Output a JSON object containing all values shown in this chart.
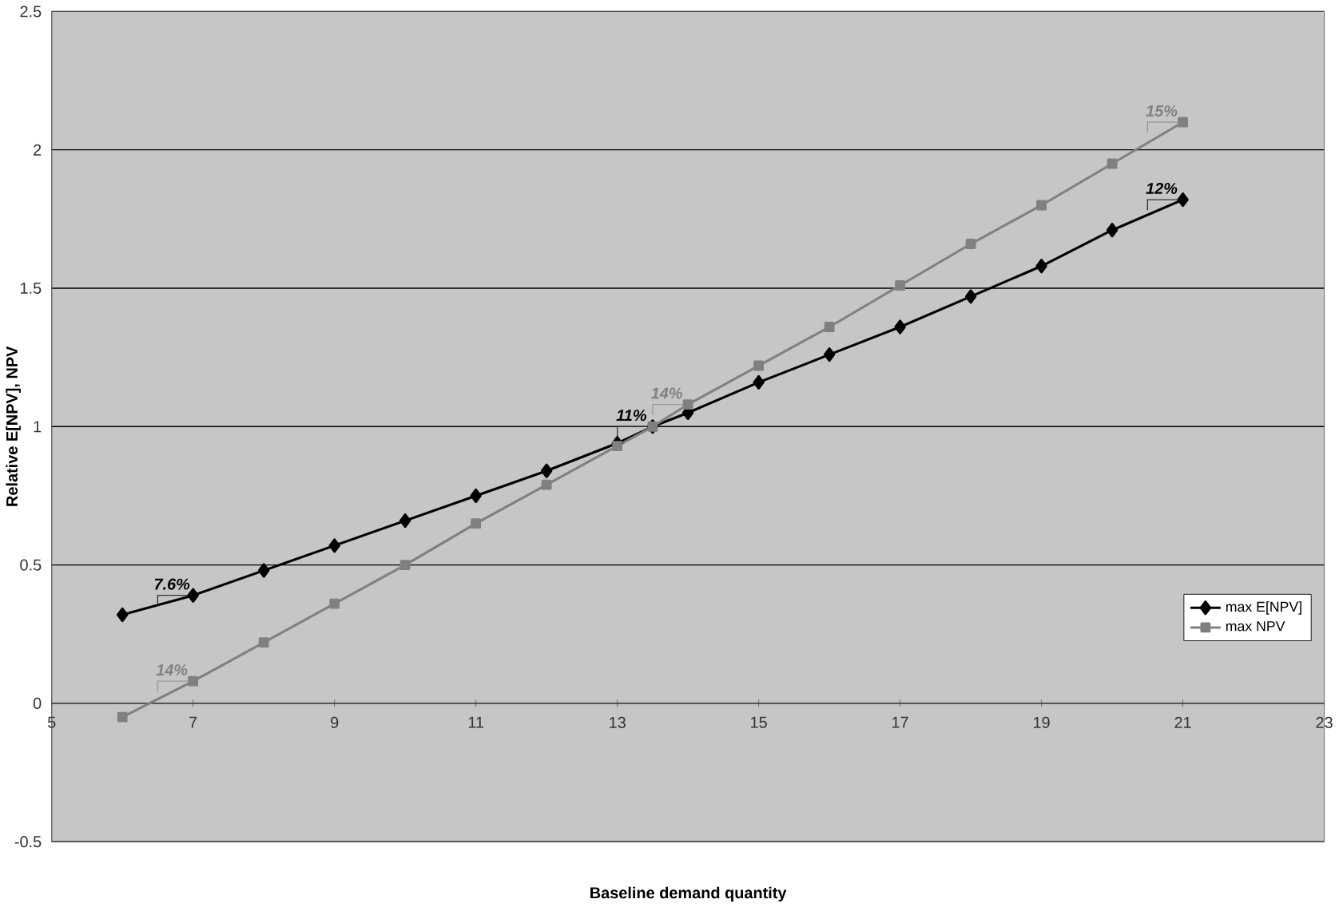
{
  "chart_data": {
    "type": "line",
    "xlabel": "Baseline demand quantity",
    "ylabel": "Relative E[NPV], NPV",
    "xlim": [
      5,
      23
    ],
    "ylim": [
      -0.5,
      2.5
    ],
    "xticks": [
      5,
      7,
      9,
      11,
      13,
      15,
      17,
      19,
      21,
      23
    ],
    "yticks": [
      -0.5,
      0,
      0.5,
      1,
      1.5,
      2,
      2.5
    ],
    "grid": "y",
    "legend": "right",
    "line_style": "solid",
    "series": [
      {
        "name": "max E[NPV]",
        "color": "#000000",
        "marker": "diamond",
        "x": [
          6,
          7,
          8,
          9,
          10,
          11,
          12,
          13,
          13.5,
          14,
          15,
          16,
          17,
          18,
          19,
          20,
          21
        ],
        "values": [
          0.32,
          0.39,
          0.48,
          0.57,
          0.66,
          0.75,
          0.84,
          0.94,
          1.0,
          1.05,
          1.16,
          1.26,
          1.36,
          1.47,
          1.58,
          1.71,
          1.82
        ]
      },
      {
        "name": "max NPV",
        "color": "#808080",
        "marker": "square",
        "x": [
          6,
          7,
          8,
          9,
          10,
          11,
          12,
          13,
          13.5,
          14,
          15,
          16,
          17,
          18,
          19,
          20,
          21
        ],
        "values": [
          -0.05,
          0.08,
          0.22,
          0.36,
          0.5,
          0.65,
          0.79,
          0.93,
          1.0,
          1.08,
          1.22,
          1.36,
          1.51,
          1.66,
          1.8,
          1.95,
          2.1
        ]
      }
    ],
    "annotations": [
      {
        "text": "7.6%",
        "x": 7,
        "y": 0.39
      },
      {
        "text": "14%",
        "x": 7,
        "y": 0.08
      },
      {
        "text": "11%",
        "x": 13.5,
        "y": 1.0
      },
      {
        "text": "14%",
        "x": 14,
        "y": 1.08
      },
      {
        "text": "15%",
        "x": 21,
        "y": 2.1
      },
      {
        "text": "12%",
        "x": 21,
        "y": 1.82
      }
    ]
  }
}
